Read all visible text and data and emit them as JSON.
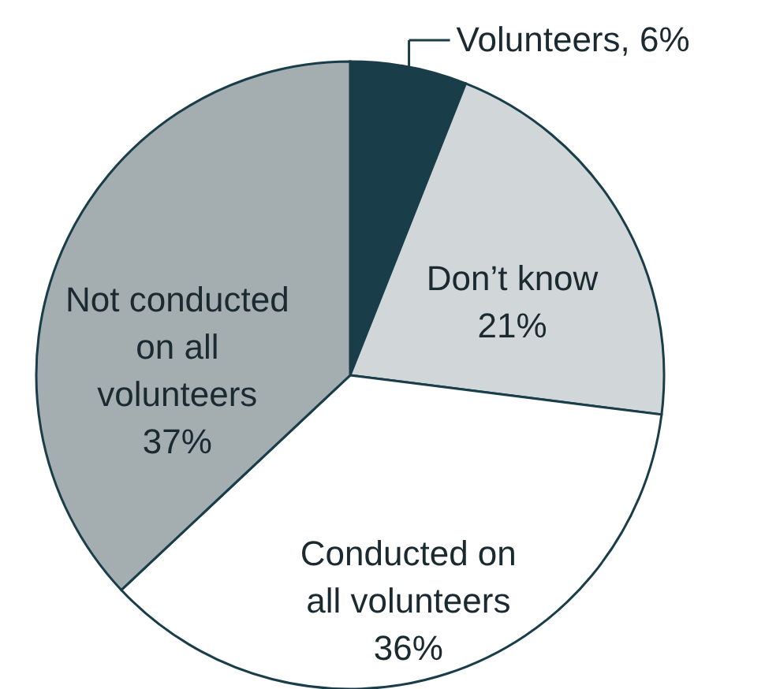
{
  "chart_data": {
    "type": "pie",
    "categories": [
      "Volunteers",
      "Don’t know",
      "Conducted on all volunteers",
      "Not conducted on all volunteers"
    ],
    "values": [
      6,
      21,
      36,
      37
    ],
    "colors": [
      "#1a3d4a",
      "#d1d7d9",
      "#ffffff",
      "#a4aeb1"
    ],
    "value_labels": [
      "6%",
      "21%",
      "36%",
      "37%"
    ]
  }
}
